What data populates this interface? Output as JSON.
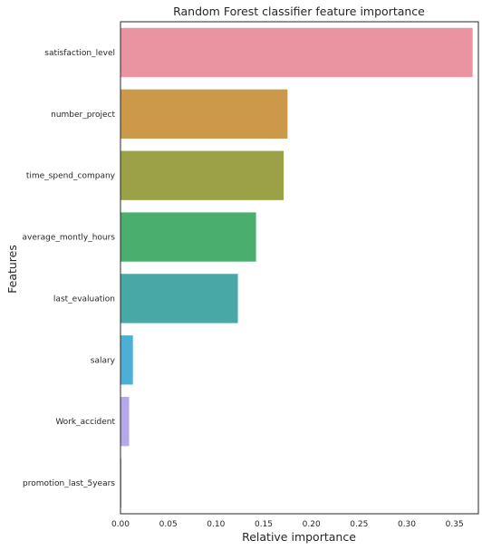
{
  "chart_data": {
    "type": "bar",
    "orientation": "horizontal",
    "title": "Random Forest classifier feature importance",
    "xlabel": "Relative importance",
    "ylabel": "Features",
    "xlim": [
      0,
      0.375
    ],
    "xticks": [
      "0.00",
      "0.05",
      "0.10",
      "0.15",
      "0.20",
      "0.25",
      "0.30",
      "0.35"
    ],
    "grid": false,
    "categories": [
      "satisfaction_level",
      "number_project",
      "time_spend_company",
      "average_montly_hours",
      "last_evaluation",
      "salary",
      "Work_accident",
      "promotion_last_5years"
    ],
    "values": [
      0.369,
      0.175,
      0.171,
      0.142,
      0.123,
      0.013,
      0.009,
      0.001
    ],
    "colors": [
      "#e994a0",
      "#cc984a",
      "#9aa146",
      "#4aaf6e",
      "#48a8a6",
      "#4daed6",
      "#b7a7ec",
      "#f28ad1"
    ]
  }
}
